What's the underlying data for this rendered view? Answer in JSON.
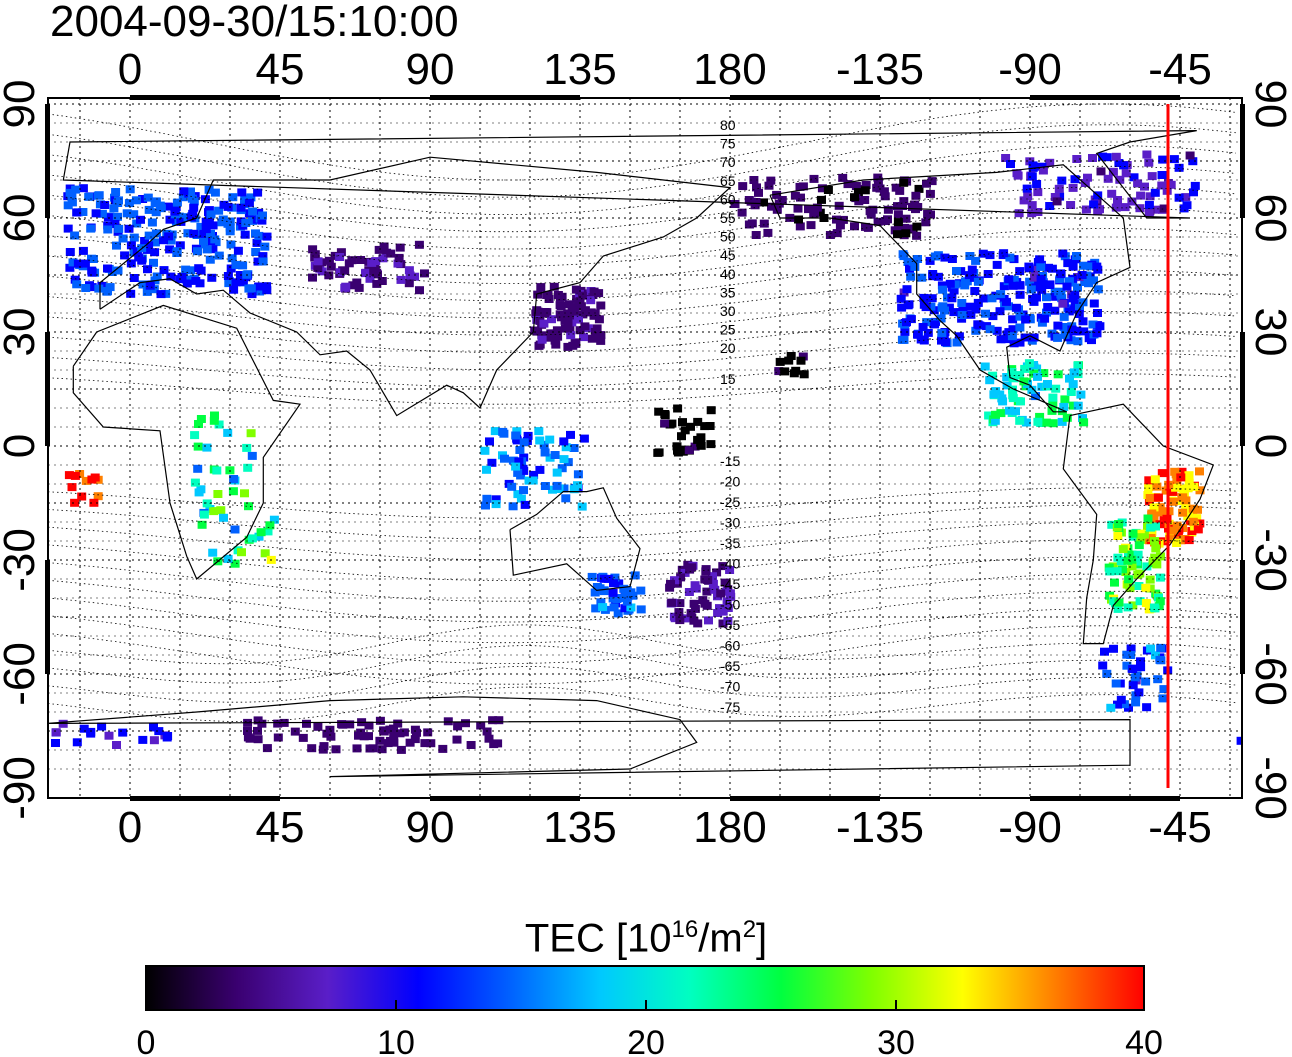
{
  "title": "2004-09-30/15:10:00",
  "map": {
    "lon_ticks_top": [
      "0",
      "45",
      "90",
      "135",
      "180",
      "-135",
      "-90",
      "-45"
    ],
    "lon_ticks_bottom": [
      "0",
      "45",
      "90",
      "135",
      "180",
      "-135",
      "-90",
      "-45"
    ],
    "lat_ticks_left": [
      "90",
      "60",
      "30",
      "0",
      "-30",
      "-60",
      "-90"
    ],
    "lat_ticks_right": [
      "90",
      "60",
      "30",
      "0",
      "-30",
      "-60",
      "-90"
    ],
    "contour_labels": {
      "north": [
        "80",
        "75",
        "70",
        "65",
        "60",
        "55",
        "50",
        "45",
        "40",
        "35",
        "30",
        "25",
        "20",
        "15"
      ],
      "south": [
        "-15",
        "-20",
        "-25",
        "-30",
        "-35",
        "-40",
        "-45",
        "-50",
        "-55",
        "-60",
        "-65",
        "-70",
        "-75"
      ]
    },
    "terminator_color": "#ff0000",
    "grid": "dotted"
  },
  "colorbar": {
    "label_main": "TEC  [10",
    "label_sup1": "16",
    "label_mid": "/m",
    "label_sup2": "2",
    "label_end": "]",
    "ticks": [
      "0",
      "10",
      "20",
      "30",
      "40"
    ],
    "range": [
      0,
      40
    ],
    "colormap": [
      "#000000",
      "#3a0070",
      "#5a1ec8",
      "#0000ff",
      "#0060ff",
      "#00c8ff",
      "#00ffc0",
      "#00ff40",
      "#80ff00",
      "#ffff00",
      "#ff8000",
      "#ff0000"
    ]
  }
}
